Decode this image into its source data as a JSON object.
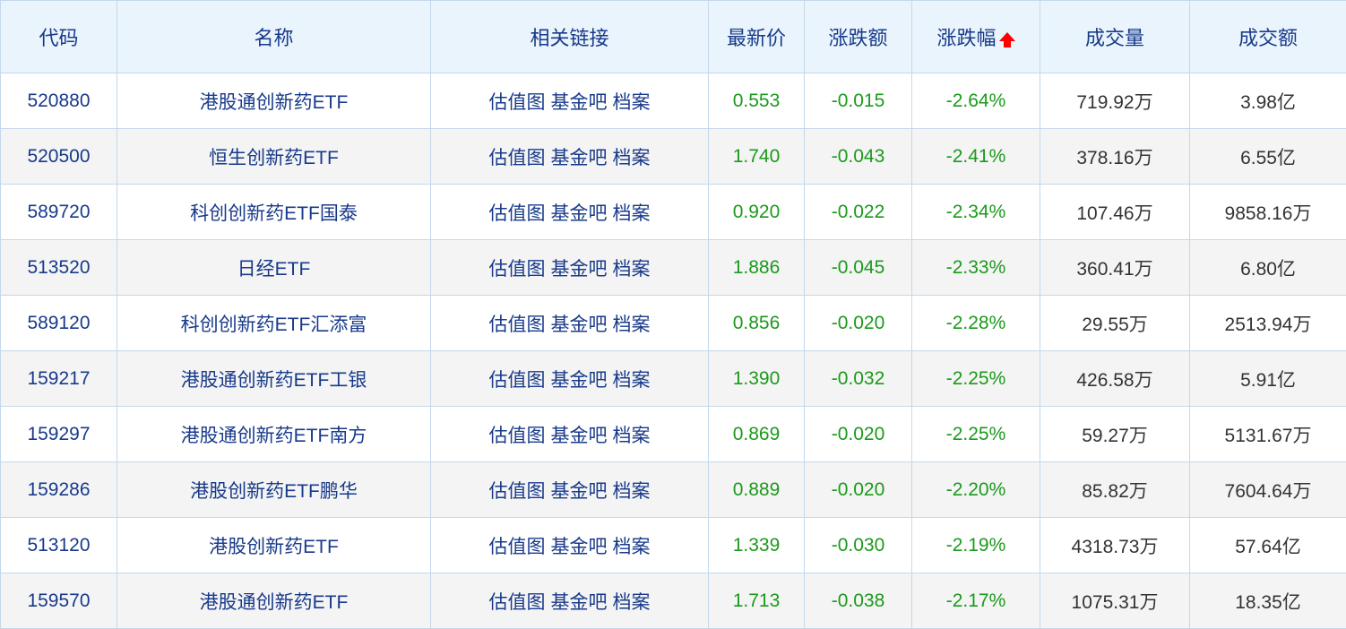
{
  "headers": [
    "代码",
    "名称",
    "相关链接",
    "最新价",
    "涨跌额",
    "涨跌幅",
    "成交量",
    "成交额"
  ],
  "sort": {
    "column": "涨跌幅",
    "icon": "arrow-up-icon",
    "color": "#ff0000"
  },
  "links": [
    "估值图",
    "基金吧",
    "档案"
  ],
  "colors": {
    "header_bg": "#eaf4fd",
    "text_blue": "#183a8a",
    "down_green": "#1b9a1b"
  },
  "rows": [
    {
      "code": "520880",
      "name": "港股通创新药ETF",
      "price": "0.553",
      "change": "-0.015",
      "pct": "-2.64%",
      "volume": "719.92万",
      "amount": "3.98亿"
    },
    {
      "code": "520500",
      "name": "恒生创新药ETF",
      "price": "1.740",
      "change": "-0.043",
      "pct": "-2.41%",
      "volume": "378.16万",
      "amount": "6.55亿"
    },
    {
      "code": "589720",
      "name": "科创创新药ETF国泰",
      "price": "0.920",
      "change": "-0.022",
      "pct": "-2.34%",
      "volume": "107.46万",
      "amount": "9858.16万"
    },
    {
      "code": "513520",
      "name": "日经ETF",
      "price": "1.886",
      "change": "-0.045",
      "pct": "-2.33%",
      "volume": "360.41万",
      "amount": "6.80亿"
    },
    {
      "code": "589120",
      "name": "科创创新药ETF汇添富",
      "price": "0.856",
      "change": "-0.020",
      "pct": "-2.28%",
      "volume": "29.55万",
      "amount": "2513.94万"
    },
    {
      "code": "159217",
      "name": "港股通创新药ETF工银",
      "price": "1.390",
      "change": "-0.032",
      "pct": "-2.25%",
      "volume": "426.58万",
      "amount": "5.91亿"
    },
    {
      "code": "159297",
      "name": "港股通创新药ETF南方",
      "price": "0.869",
      "change": "-0.020",
      "pct": "-2.25%",
      "volume": "59.27万",
      "amount": "5131.67万"
    },
    {
      "code": "159286",
      "name": "港股创新药ETF鹏华",
      "price": "0.889",
      "change": "-0.020",
      "pct": "-2.20%",
      "volume": "85.82万",
      "amount": "7604.64万"
    },
    {
      "code": "513120",
      "name": "港股创新药ETF",
      "price": "1.339",
      "change": "-0.030",
      "pct": "-2.19%",
      "volume": "4318.73万",
      "amount": "57.64亿"
    },
    {
      "code": "159570",
      "name": "港股通创新药ETF",
      "price": "1.713",
      "change": "-0.038",
      "pct": "-2.17%",
      "volume": "1075.31万",
      "amount": "18.35亿"
    }
  ]
}
